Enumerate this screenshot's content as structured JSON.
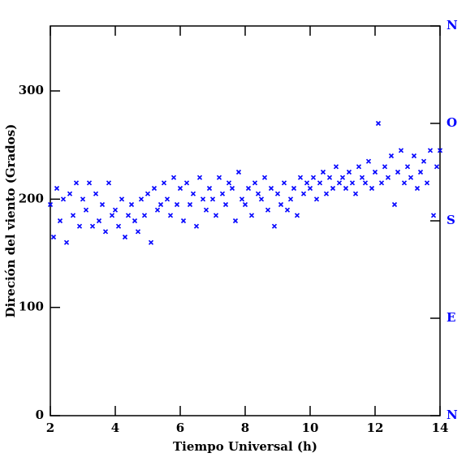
{
  "chart_data": {
    "type": "scatter",
    "xlabel": "Tiempo Universal (h)",
    "ylabel": "Direción del viento (Grados)",
    "x": [
      2.0,
      2.1,
      2.2,
      2.3,
      2.4,
      2.5,
      2.6,
      2.7,
      2.8,
      2.9,
      3.0,
      3.1,
      3.2,
      3.3,
      3.4,
      3.5,
      3.6,
      3.7,
      3.8,
      3.9,
      4.0,
      4.1,
      4.2,
      4.3,
      4.4,
      4.5,
      4.6,
      4.7,
      4.8,
      4.9,
      5.0,
      5.1,
      5.2,
      5.3,
      5.4,
      5.5,
      5.6,
      5.7,
      5.8,
      5.9,
      6.0,
      6.1,
      6.2,
      6.3,
      6.4,
      6.5,
      6.6,
      6.7,
      6.8,
      6.9,
      7.0,
      7.1,
      7.2,
      7.3,
      7.4,
      7.5,
      7.6,
      7.7,
      7.8,
      7.9,
      8.0,
      8.1,
      8.2,
      8.3,
      8.4,
      8.5,
      8.6,
      8.7,
      8.8,
      8.9,
      9.0,
      9.1,
      9.2,
      9.3,
      9.4,
      9.5,
      9.6,
      9.7,
      9.8,
      9.9,
      10.0,
      10.1,
      10.2,
      10.3,
      10.4,
      10.5,
      10.6,
      10.7,
      10.8,
      10.9,
      11.0,
      11.1,
      11.2,
      11.3,
      11.4,
      11.5,
      11.6,
      11.7,
      11.8,
      11.9,
      12.0,
      12.1,
      12.2,
      12.3,
      12.4,
      12.5,
      12.6,
      12.7,
      12.8,
      12.9,
      13.0,
      13.1,
      13.2,
      13.3,
      13.4,
      13.5,
      13.6,
      13.7,
      13.8,
      13.9,
      14.0
    ],
    "series": [
      {
        "color": "#0000ff",
        "values": [
          195,
          165,
          210,
          180,
          200,
          160,
          205,
          185,
          215,
          175,
          200,
          190,
          215,
          175,
          205,
          180,
          195,
          170,
          215,
          185,
          190,
          175,
          200,
          165,
          185,
          195,
          180,
          170,
          200,
          185,
          205,
          160,
          210,
          190,
          195,
          215,
          200,
          185,
          220,
          195,
          210,
          180,
          215,
          195,
          205,
          175,
          220,
          200,
          190,
          210,
          200,
          185,
          220,
          205,
          195,
          215,
          210,
          180,
          225,
          200,
          195,
          210,
          185,
          215,
          205,
          200,
          220,
          190,
          210,
          175,
          205,
          195,
          215,
          190,
          200,
          210,
          185,
          220,
          205,
          215,
          210,
          220,
          200,
          215,
          225,
          205,
          220,
          210,
          230,
          215,
          220,
          210,
          225,
          215,
          205,
          230,
          220,
          215,
          235,
          210,
          225,
          270,
          215,
          230,
          220,
          240,
          195,
          225,
          245,
          215,
          230,
          220,
          240,
          210,
          225,
          235,
          215,
          245,
          185,
          230,
          245
        ]
      }
    ],
    "xlim": [
      2,
      14
    ],
    "xticks": [
      2,
      4,
      6,
      8,
      10,
      12,
      14
    ],
    "ylim": [
      0,
      360
    ],
    "yticks": [
      0,
      100,
      200,
      300
    ],
    "y2lim": [
      0,
      360
    ],
    "y2ticks": [
      {
        "value": 0,
        "label": "N"
      },
      {
        "value": 90,
        "label": "E"
      },
      {
        "value": 180,
        "label": "S"
      },
      {
        "value": 270,
        "label": "O"
      },
      {
        "value": 360,
        "label": "N"
      }
    ],
    "y2color": "#0000ff"
  }
}
